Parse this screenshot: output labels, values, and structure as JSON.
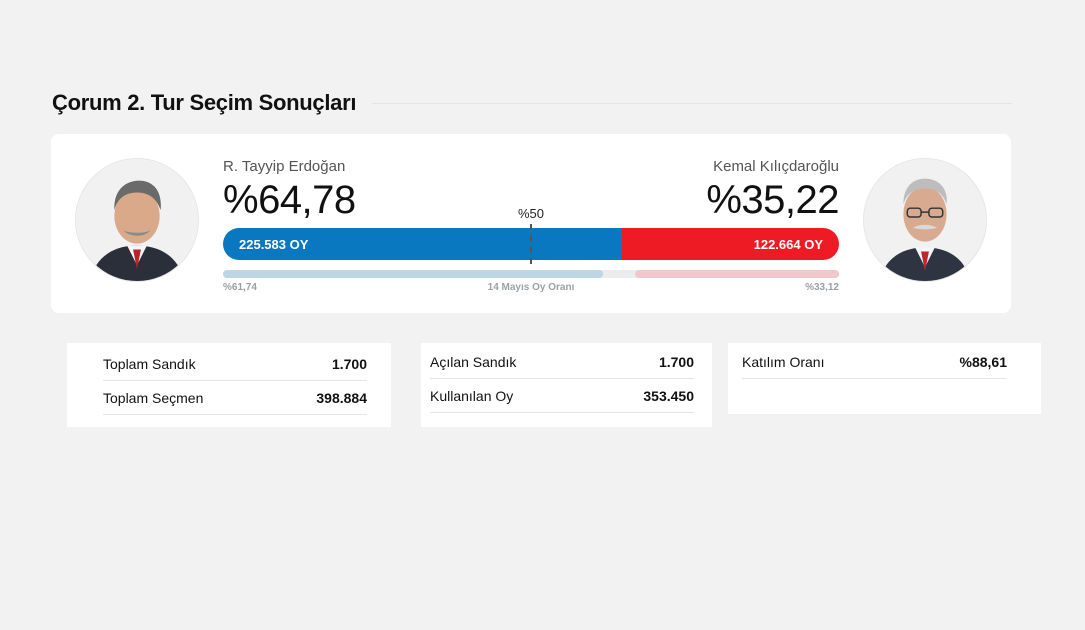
{
  "page": {
    "title": "Çorum 2. Tur Seçim Sonuçları"
  },
  "candidates": {
    "left": {
      "name": "R. Tayyip Erdoğan",
      "percent": "%64,78",
      "votes": "225.583 OY",
      "share": 0.6478,
      "prev_percent": "%61,74",
      "prev_share": 0.6174,
      "color": "#0978c1"
    },
    "right": {
      "name": "Kemal Kılıçdaroğlu",
      "percent": "%35,22",
      "votes": "122.664 OY",
      "share": 0.3522,
      "prev_percent": "%33,12",
      "prev_share": 0.3312,
      "color": "#ef1b24"
    }
  },
  "bar": {
    "half_label": "%50",
    "prev_round_label": "14 Mayıs Oy Oranı"
  },
  "stats": [
    {
      "rows": [
        {
          "label": "Toplam Sandık",
          "value": "1.700"
        },
        {
          "label": "Toplam Seçmen",
          "value": "398.884"
        }
      ]
    },
    {
      "rows": [
        {
          "label": "Açılan Sandık",
          "value": "1.700"
        },
        {
          "label": "Kullanılan Oy",
          "value": "353.450"
        }
      ]
    },
    {
      "rows": [
        {
          "label": "Katılım Oranı",
          "value": "%88,61"
        }
      ]
    }
  ]
}
